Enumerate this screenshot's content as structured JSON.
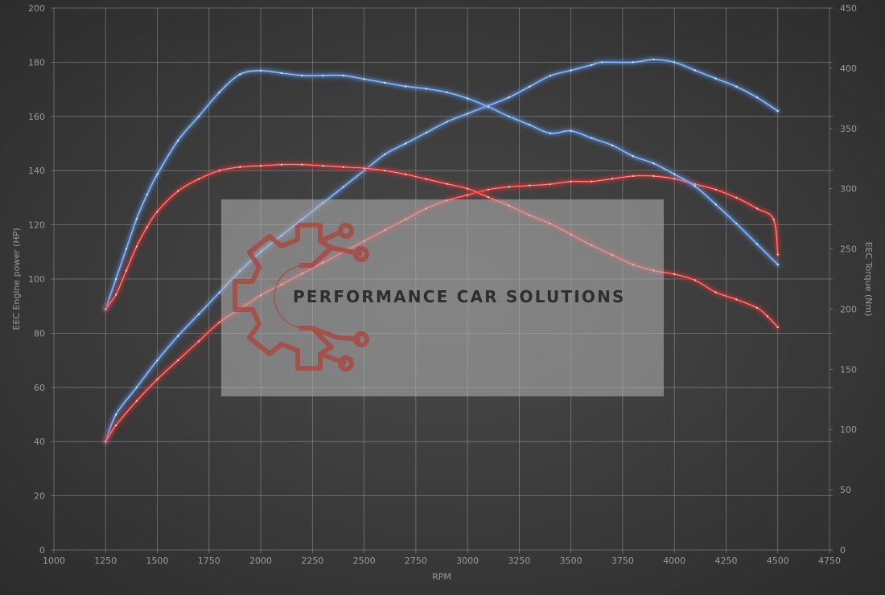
{
  "chart_data": {
    "type": "line",
    "title": "",
    "xlabel": "RPM",
    "ylabel_left": "EEC Engine power (HP)",
    "ylabel_right": "EEC Torque (Nm)",
    "xlim": [
      1000,
      4750
    ],
    "ylim_left": [
      0,
      200
    ],
    "ylim_right": [
      0,
      450
    ],
    "x_ticks": [
      "1000",
      "1250",
      "1500",
      "1750",
      "2000",
      "2250",
      "2500",
      "2750",
      "3000",
      "3250",
      "3500",
      "3750",
      "4000",
      "4250",
      "4500",
      "4750"
    ],
    "y_left_ticks": [
      "0",
      "20",
      "40",
      "60",
      "80",
      "100",
      "120",
      "140",
      "160",
      "180",
      "200"
    ],
    "y_right_ticks": [
      "0",
      "50",
      "100",
      "150",
      "200",
      "250",
      "300",
      "350",
      "400",
      "450"
    ],
    "grid": true,
    "series": [
      {
        "axis": "left",
        "color": "#5a8fd6",
        "points": [
          [
            1250,
            40
          ],
          [
            1300,
            50
          ],
          [
            1400,
            60
          ],
          [
            1500,
            70
          ],
          [
            1600,
            79
          ],
          [
            1700,
            87
          ],
          [
            1800,
            95
          ],
          [
            1900,
            103
          ],
          [
            2000,
            110
          ],
          [
            2100,
            116
          ],
          [
            2200,
            122
          ],
          [
            2300,
            128
          ],
          [
            2400,
            134
          ],
          [
            2500,
            140
          ],
          [
            2600,
            146
          ],
          [
            2700,
            150
          ],
          [
            2800,
            154
          ],
          [
            2900,
            158
          ],
          [
            3000,
            161
          ],
          [
            3100,
            164
          ],
          [
            3200,
            167
          ],
          [
            3300,
            171
          ],
          [
            3400,
            175
          ],
          [
            3500,
            177
          ],
          [
            3600,
            179
          ],
          [
            3650,
            180
          ],
          [
            3800,
            180
          ],
          [
            3900,
            181
          ],
          [
            4000,
            180
          ],
          [
            4100,
            177
          ],
          [
            4200,
            174
          ],
          [
            4300,
            171
          ],
          [
            4400,
            167
          ],
          [
            4500,
            162
          ]
        ]
      },
      {
        "axis": "left",
        "color": "#d83434",
        "points": [
          [
            1250,
            40
          ],
          [
            1300,
            46
          ],
          [
            1400,
            55
          ],
          [
            1500,
            63
          ],
          [
            1600,
            70
          ],
          [
            1700,
            77
          ],
          [
            1800,
            84
          ],
          [
            1900,
            89
          ],
          [
            2000,
            94
          ],
          [
            2100,
            98
          ],
          [
            2200,
            102
          ],
          [
            2300,
            106
          ],
          [
            2400,
            110
          ],
          [
            2500,
            114
          ],
          [
            2600,
            118
          ],
          [
            2700,
            122
          ],
          [
            2800,
            126
          ],
          [
            2900,
            129
          ],
          [
            3000,
            131
          ],
          [
            3100,
            133
          ],
          [
            3200,
            134
          ],
          [
            3300,
            134.5
          ],
          [
            3400,
            135
          ],
          [
            3500,
            136
          ],
          [
            3600,
            136
          ],
          [
            3700,
            137
          ],
          [
            3800,
            138
          ],
          [
            3900,
            138
          ],
          [
            4000,
            137
          ],
          [
            4100,
            135
          ],
          [
            4200,
            133
          ],
          [
            4300,
            130
          ],
          [
            4400,
            126
          ],
          [
            4480,
            122
          ],
          [
            4500,
            109
          ]
        ]
      },
      {
        "axis": "right",
        "color": "#5a8fd6",
        "points": [
          [
            1250,
            200
          ],
          [
            1300,
            225
          ],
          [
            1350,
            250
          ],
          [
            1400,
            275
          ],
          [
            1450,
            295
          ],
          [
            1500,
            312
          ],
          [
            1600,
            340
          ],
          [
            1700,
            360
          ],
          [
            1800,
            380
          ],
          [
            1900,
            395
          ],
          [
            2000,
            398
          ],
          [
            2100,
            396
          ],
          [
            2200,
            394
          ],
          [
            2300,
            394
          ],
          [
            2400,
            394
          ],
          [
            2500,
            391
          ],
          [
            2600,
            388
          ],
          [
            2700,
            385
          ],
          [
            2800,
            383
          ],
          [
            2900,
            380
          ],
          [
            3000,
            375
          ],
          [
            3100,
            368
          ],
          [
            3200,
            360
          ],
          [
            3300,
            353
          ],
          [
            3400,
            346
          ],
          [
            3500,
            348
          ],
          [
            3600,
            342
          ],
          [
            3700,
            336
          ],
          [
            3800,
            327
          ],
          [
            3900,
            321
          ],
          [
            4000,
            312
          ],
          [
            4100,
            302
          ],
          [
            4200,
            287
          ],
          [
            4300,
            271
          ],
          [
            4400,
            254
          ],
          [
            4500,
            237
          ]
        ]
      },
      {
        "axis": "right",
        "color": "#d83434",
        "points": [
          [
            1250,
            200
          ],
          [
            1300,
            212
          ],
          [
            1350,
            232
          ],
          [
            1400,
            252
          ],
          [
            1450,
            268
          ],
          [
            1500,
            281
          ],
          [
            1600,
            298
          ],
          [
            1700,
            308
          ],
          [
            1800,
            315
          ],
          [
            1900,
            318
          ],
          [
            2000,
            319
          ],
          [
            2100,
            320
          ],
          [
            2200,
            320
          ],
          [
            2300,
            319
          ],
          [
            2400,
            318
          ],
          [
            2500,
            317
          ],
          [
            2600,
            315
          ],
          [
            2700,
            312
          ],
          [
            2800,
            308
          ],
          [
            2900,
            304
          ],
          [
            3000,
            300
          ],
          [
            3100,
            293
          ],
          [
            3200,
            286
          ],
          [
            3300,
            278
          ],
          [
            3400,
            271
          ],
          [
            3500,
            262
          ],
          [
            3600,
            253
          ],
          [
            3700,
            245
          ],
          [
            3800,
            237
          ],
          [
            3900,
            232
          ],
          [
            4000,
            229
          ],
          [
            4100,
            224
          ],
          [
            4200,
            214
          ],
          [
            4300,
            208
          ],
          [
            4400,
            201
          ],
          [
            4450,
            194
          ],
          [
            4500,
            185
          ]
        ]
      }
    ]
  },
  "watermark": {
    "text": "PERFORMANCE CAR SOLUTIONS",
    "logo_icon": "gear-circuit-icon"
  }
}
